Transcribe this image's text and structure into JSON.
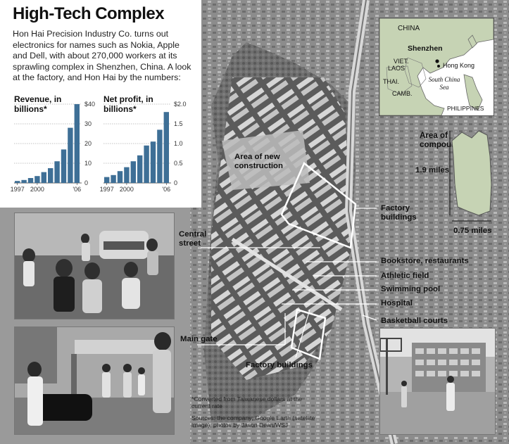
{
  "title": "High-Tech Complex",
  "intro": "Hon Hai Precision Industry Co. turns out electronics for names such as Nokia, Apple and Dell, with about 270,000 workers at its sprawling complex in Shenzhen, China. A look at the factory, and Hon Hai by the numbers:",
  "chart_data": [
    {
      "type": "bar",
      "title": "Revenue, in billions*",
      "years": [
        1997,
        1998,
        1999,
        2000,
        2001,
        2002,
        2003,
        2004,
        2005,
        2006
      ],
      "values": [
        1.0,
        1.5,
        2.5,
        3.5,
        5.5,
        7.5,
        11,
        17,
        28,
        40
      ],
      "x_tick_labels": [
        "1997",
        "2000",
        "'06"
      ],
      "y_ticks": [
        "0",
        "10",
        "20",
        "30",
        "$40"
      ],
      "ylim": [
        0,
        40
      ]
    },
    {
      "type": "bar",
      "title": "Net profit, in billions*",
      "years": [
        1997,
        1998,
        1999,
        2000,
        2001,
        2002,
        2003,
        2004,
        2005,
        2006
      ],
      "values": [
        0.15,
        0.2,
        0.3,
        0.4,
        0.55,
        0.7,
        0.95,
        1.05,
        1.35,
        1.8
      ],
      "x_tick_labels": [
        "1997",
        "2000",
        "'06"
      ],
      "y_ticks": [
        "0",
        "0.5",
        "1.0",
        "1.5",
        "$2.0"
      ],
      "ylim": [
        0,
        2.0
      ]
    }
  ],
  "inset": {
    "china": "CHINA",
    "shenzhen": "Shenzhen",
    "hongkong": "Hong Kong",
    "viet": "VIET.",
    "laos": "LAOS",
    "thai": "THAI.",
    "camb": "CAMB.",
    "south_china_sea": "South China Sea",
    "philippines": "PHILIPPINES"
  },
  "area": {
    "title": "Area of compound",
    "height": "1.9 miles",
    "width": "0.75 miles"
  },
  "labels": {
    "new_construction": "Area of new construction",
    "factory_buildings_right": "Factory buildings",
    "central_street": "Central street",
    "bookstore": "Bookstore, restaurants",
    "athletic": "Athletic field",
    "pool": "Swimming pool",
    "hospital": "Hospital",
    "basketball": "Basketball courts",
    "main_gate": "Main gate",
    "factory_buildings_bottom": "Factory buildings"
  },
  "footnote": "*Converted from Taiwanese dollars at the current rate",
  "sources": "Sources: the company; Google Earth (satellite image); photos by Jason Dean/WSJ",
  "colors": {
    "bar": "#3e6f96",
    "land": "#c6d3b4",
    "sea": "#ffffff"
  }
}
